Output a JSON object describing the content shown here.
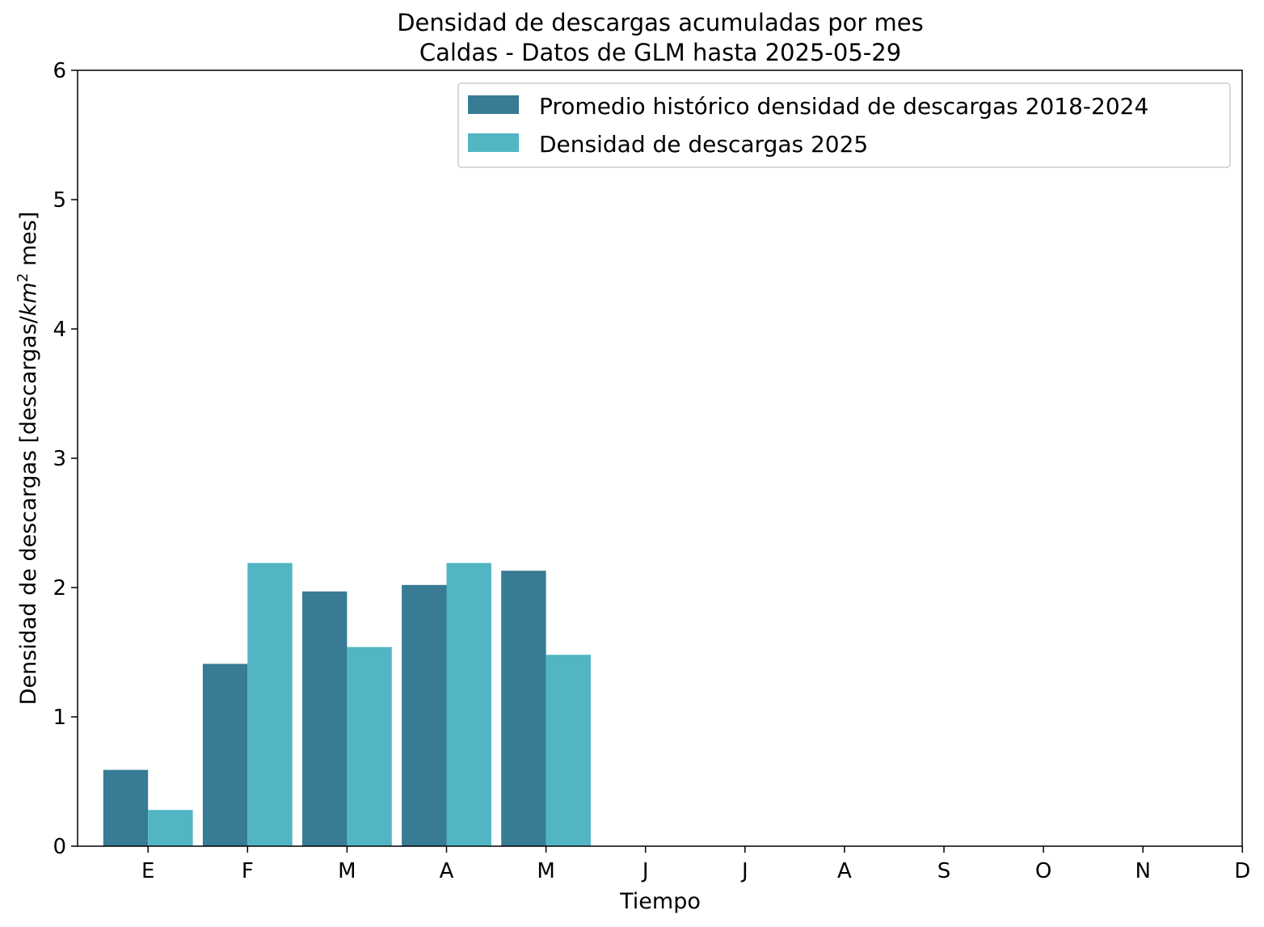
{
  "chart_data": {
    "type": "bar",
    "title": "Densidad de descargas acumuladas por mes",
    "subtitle": "Caldas - Datos de GLM hasta 2025-05-29",
    "xlabel": "Tiempo",
    "ylabel_main": "Densidad de descargas [descargas/",
    "ylabel_unit": "km",
    "ylabel_sup": "2",
    "ylabel_tail": " mes]",
    "categories": [
      "E",
      "F",
      "M",
      "A",
      "M",
      "J",
      "J",
      "A",
      "S",
      "O",
      "N",
      "D"
    ],
    "ylim": [
      0,
      6
    ],
    "yticks": [
      "0",
      "1",
      "2",
      "3",
      "4",
      "5",
      "6"
    ],
    "grid": false,
    "legend_position": "top-right",
    "series": [
      {
        "name": "Promedio histórico densidad de descargas 2018-2024",
        "color": "#377b94",
        "values": [
          0.59,
          1.41,
          1.97,
          2.02,
          2.13,
          null,
          null,
          null,
          null,
          null,
          null,
          null
        ]
      },
      {
        "name": "Densidad de descargas 2025",
        "color": "#51b5c4",
        "values": [
          0.28,
          2.19,
          1.54,
          2.19,
          1.48,
          null,
          null,
          null,
          null,
          null,
          null,
          null
        ]
      }
    ]
  }
}
